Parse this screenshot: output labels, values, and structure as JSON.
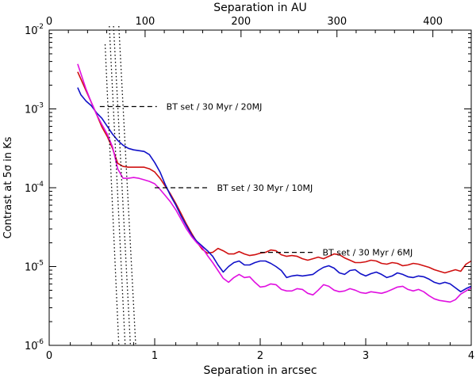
{
  "chart_data": {
    "type": "line",
    "title": "",
    "xlabel": "Separation in arcsec",
    "x2label": "Separation in AU",
    "ylabel": "Contrast at 5σ in Ks",
    "xlim": [
      0,
      4
    ],
    "x2lim": [
      0,
      440
    ],
    "ylim_log10": [
      -6,
      -2
    ],
    "yscale": "log",
    "x_ticks": [
      {
        "value": 0,
        "label": "0"
      },
      {
        "value": 1,
        "label": "1"
      },
      {
        "value": 2,
        "label": "2"
      },
      {
        "value": 3,
        "label": "3"
      },
      {
        "value": 4,
        "label": "4"
      }
    ],
    "x2_ticks": [
      {
        "value": 0,
        "label": "0"
      },
      {
        "value": 100,
        "label": "100"
      },
      {
        "value": 200,
        "label": "200"
      },
      {
        "value": 300,
        "label": "300"
      },
      {
        "value": 400,
        "label": "400"
      }
    ],
    "y_ticks": [
      {
        "exp": -6,
        "base": "10",
        "power": "-6"
      },
      {
        "exp": -5,
        "base": "10",
        "power": "-5"
      },
      {
        "exp": -4,
        "base": "10",
        "power": "-4"
      },
      {
        "exp": -3,
        "base": "10",
        "power": "-3"
      },
      {
        "exp": -2,
        "base": "10",
        "power": "-2"
      }
    ],
    "series": [
      {
        "name": "red-curve",
        "color": "#d01010",
        "points": [
          [
            0.27,
            -2.53
          ],
          [
            0.3,
            -2.62
          ],
          [
            0.35,
            -2.77
          ],
          [
            0.4,
            -2.92
          ],
          [
            0.45,
            -3.07
          ],
          [
            0.5,
            -3.23
          ],
          [
            0.55,
            -3.35
          ],
          [
            0.6,
            -3.5
          ],
          [
            0.65,
            -3.69
          ],
          [
            0.7,
            -3.73
          ],
          [
            0.75,
            -3.74
          ],
          [
            0.8,
            -3.74
          ],
          [
            0.85,
            -3.74
          ],
          [
            0.9,
            -3.74
          ],
          [
            0.95,
            -3.76
          ],
          [
            1.0,
            -3.8
          ],
          [
            1.05,
            -3.88
          ],
          [
            1.1,
            -3.98
          ],
          [
            1.15,
            -4.08
          ],
          [
            1.2,
            -4.2
          ],
          [
            1.25,
            -4.33
          ],
          [
            1.3,
            -4.46
          ],
          [
            1.35,
            -4.58
          ],
          [
            1.4,
            -4.69
          ],
          [
            1.45,
            -4.78
          ],
          [
            1.5,
            -4.83
          ],
          [
            1.55,
            -4.82
          ],
          [
            1.6,
            -4.77
          ],
          [
            1.65,
            -4.8
          ],
          [
            1.7,
            -4.84
          ],
          [
            1.75,
            -4.84
          ],
          [
            1.8,
            -4.81
          ],
          [
            1.85,
            -4.84
          ],
          [
            1.9,
            -4.86
          ],
          [
            1.95,
            -4.85
          ],
          [
            2.0,
            -4.83
          ],
          [
            2.05,
            -4.82
          ],
          [
            2.1,
            -4.79
          ],
          [
            2.15,
            -4.8
          ],
          [
            2.2,
            -4.85
          ],
          [
            2.25,
            -4.87
          ],
          [
            2.3,
            -4.86
          ],
          [
            2.35,
            -4.87
          ],
          [
            2.4,
            -4.9
          ],
          [
            2.45,
            -4.92
          ],
          [
            2.5,
            -4.9
          ],
          [
            2.55,
            -4.88
          ],
          [
            2.6,
            -4.9
          ],
          [
            2.65,
            -4.87
          ],
          [
            2.7,
            -4.84
          ],
          [
            2.75,
            -4.85
          ],
          [
            2.8,
            -4.89
          ],
          [
            2.85,
            -4.92
          ],
          [
            2.9,
            -4.95
          ],
          [
            2.95,
            -4.95
          ],
          [
            3.0,
            -4.94
          ],
          [
            3.05,
            -4.92
          ],
          [
            3.1,
            -4.93
          ],
          [
            3.15,
            -4.96
          ],
          [
            3.2,
            -4.97
          ],
          [
            3.25,
            -4.95
          ],
          [
            3.3,
            -4.96
          ],
          [
            3.35,
            -4.99
          ],
          [
            3.4,
            -4.98
          ],
          [
            3.45,
            -4.96
          ],
          [
            3.5,
            -4.97
          ],
          [
            3.55,
            -4.99
          ],
          [
            3.6,
            -5.01
          ],
          [
            3.65,
            -5.04
          ],
          [
            3.7,
            -5.06
          ],
          [
            3.75,
            -5.08
          ],
          [
            3.8,
            -5.06
          ],
          [
            3.85,
            -5.04
          ],
          [
            3.9,
            -5.06
          ],
          [
            3.95,
            -4.97
          ],
          [
            4.0,
            -4.93
          ]
        ]
      },
      {
        "name": "blue-curve",
        "color": "#1010c8",
        "points": [
          [
            0.27,
            -2.73
          ],
          [
            0.3,
            -2.82
          ],
          [
            0.35,
            -2.9
          ],
          [
            0.4,
            -2.96
          ],
          [
            0.45,
            -3.05
          ],
          [
            0.5,
            -3.12
          ],
          [
            0.55,
            -3.22
          ],
          [
            0.6,
            -3.32
          ],
          [
            0.65,
            -3.4
          ],
          [
            0.7,
            -3.46
          ],
          [
            0.75,
            -3.5
          ],
          [
            0.8,
            -3.52
          ],
          [
            0.85,
            -3.53
          ],
          [
            0.9,
            -3.54
          ],
          [
            0.95,
            -3.58
          ],
          [
            1.0,
            -3.68
          ],
          [
            1.05,
            -3.8
          ],
          [
            1.1,
            -3.96
          ],
          [
            1.15,
            -4.1
          ],
          [
            1.2,
            -4.22
          ],
          [
            1.25,
            -4.36
          ],
          [
            1.3,
            -4.48
          ],
          [
            1.35,
            -4.6
          ],
          [
            1.4,
            -4.68
          ],
          [
            1.45,
            -4.74
          ],
          [
            1.5,
            -4.8
          ],
          [
            1.55,
            -4.87
          ],
          [
            1.6,
            -4.98
          ],
          [
            1.65,
            -5.07
          ],
          [
            1.7,
            -5.0
          ],
          [
            1.75,
            -4.95
          ],
          [
            1.8,
            -4.93
          ],
          [
            1.85,
            -4.98
          ],
          [
            1.9,
            -4.98
          ],
          [
            1.95,
            -4.95
          ],
          [
            2.0,
            -4.93
          ],
          [
            2.05,
            -4.93
          ],
          [
            2.1,
            -4.96
          ],
          [
            2.15,
            -5.0
          ],
          [
            2.2,
            -5.05
          ],
          [
            2.25,
            -5.14
          ],
          [
            2.3,
            -5.12
          ],
          [
            2.35,
            -5.11
          ],
          [
            2.4,
            -5.12
          ],
          [
            2.45,
            -5.11
          ],
          [
            2.5,
            -5.1
          ],
          [
            2.55,
            -5.05
          ],
          [
            2.6,
            -5.01
          ],
          [
            2.65,
            -4.99
          ],
          [
            2.7,
            -5.02
          ],
          [
            2.75,
            -5.08
          ],
          [
            2.8,
            -5.1
          ],
          [
            2.85,
            -5.05
          ],
          [
            2.9,
            -5.04
          ],
          [
            2.95,
            -5.09
          ],
          [
            3.0,
            -5.12
          ],
          [
            3.05,
            -5.09
          ],
          [
            3.1,
            -5.07
          ],
          [
            3.15,
            -5.1
          ],
          [
            3.2,
            -5.14
          ],
          [
            3.25,
            -5.12
          ],
          [
            3.3,
            -5.08
          ],
          [
            3.35,
            -5.1
          ],
          [
            3.4,
            -5.13
          ],
          [
            3.45,
            -5.14
          ],
          [
            3.5,
            -5.12
          ],
          [
            3.55,
            -5.13
          ],
          [
            3.6,
            -5.16
          ],
          [
            3.65,
            -5.2
          ],
          [
            3.7,
            -5.22
          ],
          [
            3.75,
            -5.2
          ],
          [
            3.8,
            -5.22
          ],
          [
            3.85,
            -5.27
          ],
          [
            3.9,
            -5.32
          ],
          [
            3.95,
            -5.28
          ],
          [
            4.0,
            -5.25
          ]
        ]
      },
      {
        "name": "magenta-curve",
        "color": "#e010e0",
        "points": [
          [
            0.27,
            -2.43
          ],
          [
            0.3,
            -2.55
          ],
          [
            0.35,
            -2.75
          ],
          [
            0.4,
            -2.92
          ],
          [
            0.45,
            -3.07
          ],
          [
            0.5,
            -3.2
          ],
          [
            0.55,
            -3.32
          ],
          [
            0.6,
            -3.48
          ],
          [
            0.65,
            -3.76
          ],
          [
            0.7,
            -3.88
          ],
          [
            0.75,
            -3.88
          ],
          [
            0.8,
            -3.87
          ],
          [
            0.85,
            -3.88
          ],
          [
            0.9,
            -3.9
          ],
          [
            0.95,
            -3.92
          ],
          [
            1.0,
            -3.95
          ],
          [
            1.05,
            -4.02
          ],
          [
            1.1,
            -4.1
          ],
          [
            1.15,
            -4.18
          ],
          [
            1.2,
            -4.28
          ],
          [
            1.25,
            -4.4
          ],
          [
            1.3,
            -4.52
          ],
          [
            1.35,
            -4.62
          ],
          [
            1.4,
            -4.7
          ],
          [
            1.45,
            -4.76
          ],
          [
            1.5,
            -4.86
          ],
          [
            1.55,
            -4.95
          ],
          [
            1.6,
            -5.05
          ],
          [
            1.65,
            -5.15
          ],
          [
            1.7,
            -5.2
          ],
          [
            1.75,
            -5.14
          ],
          [
            1.8,
            -5.1
          ],
          [
            1.85,
            -5.14
          ],
          [
            1.9,
            -5.13
          ],
          [
            1.95,
            -5.2
          ],
          [
            2.0,
            -5.26
          ],
          [
            2.05,
            -5.25
          ],
          [
            2.1,
            -5.22
          ],
          [
            2.15,
            -5.23
          ],
          [
            2.2,
            -5.29
          ],
          [
            2.25,
            -5.31
          ],
          [
            2.3,
            -5.31
          ],
          [
            2.35,
            -5.28
          ],
          [
            2.4,
            -5.29
          ],
          [
            2.45,
            -5.34
          ],
          [
            2.5,
            -5.36
          ],
          [
            2.55,
            -5.3
          ],
          [
            2.6,
            -5.23
          ],
          [
            2.65,
            -5.25
          ],
          [
            2.7,
            -5.3
          ],
          [
            2.75,
            -5.32
          ],
          [
            2.8,
            -5.31
          ],
          [
            2.85,
            -5.28
          ],
          [
            2.9,
            -5.3
          ],
          [
            2.95,
            -5.33
          ],
          [
            3.0,
            -5.34
          ],
          [
            3.05,
            -5.32
          ],
          [
            3.1,
            -5.33
          ],
          [
            3.15,
            -5.34
          ],
          [
            3.2,
            -5.32
          ],
          [
            3.25,
            -5.29
          ],
          [
            3.3,
            -5.26
          ],
          [
            3.35,
            -5.25
          ],
          [
            3.4,
            -5.29
          ],
          [
            3.45,
            -5.31
          ],
          [
            3.5,
            -5.29
          ],
          [
            3.55,
            -5.32
          ],
          [
            3.6,
            -5.37
          ],
          [
            3.65,
            -5.41
          ],
          [
            3.7,
            -5.43
          ],
          [
            3.75,
            -5.44
          ],
          [
            3.8,
            -5.45
          ],
          [
            3.85,
            -5.42
          ],
          [
            3.9,
            -5.35
          ],
          [
            3.95,
            -5.31
          ],
          [
            4.0,
            -5.27
          ]
        ]
      }
    ],
    "dotted_lines": [
      {
        "name": "mass-track-1",
        "from": [
          0.53,
          -2.18
        ],
        "to": [
          0.66,
          -6.0
        ]
      },
      {
        "name": "mass-track-2",
        "from": [
          0.57,
          -1.95
        ],
        "to": [
          0.72,
          -6.0
        ]
      },
      {
        "name": "mass-track-3",
        "from": [
          0.61,
          -1.95
        ],
        "to": [
          0.77,
          -6.0
        ]
      },
      {
        "name": "mass-track-4",
        "from": [
          0.66,
          -1.95
        ],
        "to": [
          0.82,
          -6.0
        ]
      }
    ],
    "annotations": [
      {
        "name": "annotation-20mj",
        "text": "BT set / 30 Myr / 20MJ",
        "dash_from": 0.48,
        "dash_to": 1.02,
        "y_log10": -2.97
      },
      {
        "name": "annotation-10mj",
        "text": "BT set / 30 Myr / 10MJ",
        "dash_from": 1.0,
        "dash_to": 1.5,
        "y_log10": -4.0
      },
      {
        "name": "annotation-6mj",
        "text": "BT set / 30 Myr / 6MJ",
        "dash_from": 2.0,
        "dash_to": 2.5,
        "y_log10": -4.82
      }
    ]
  }
}
